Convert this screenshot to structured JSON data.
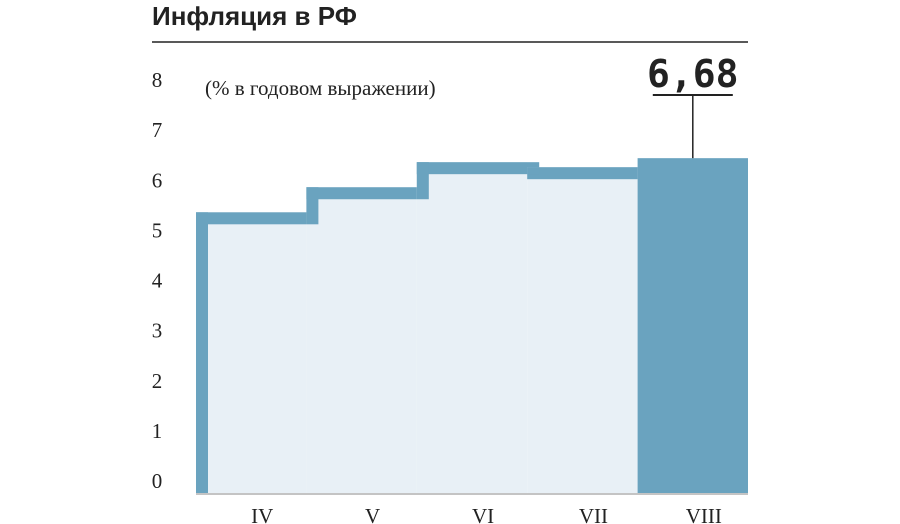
{
  "chart_data": {
    "type": "bar",
    "title": "Инфляция в РФ",
    "subtitle": "(% в годовом выражении)",
    "categories": [
      "IV",
      "V",
      "VI",
      "VII",
      "VIII"
    ],
    "values": [
      5.6,
      6.1,
      6.6,
      6.5,
      6.68
    ],
    "value_labels": [
      null,
      null,
      null,
      null,
      "6,68"
    ],
    "color": "#6aa3bf",
    "fill_color": "#e8f0f6",
    "ylim": [
      0,
      8
    ],
    "yticks": [
      0,
      1,
      2,
      3,
      4,
      5,
      6,
      7,
      8
    ]
  }
}
